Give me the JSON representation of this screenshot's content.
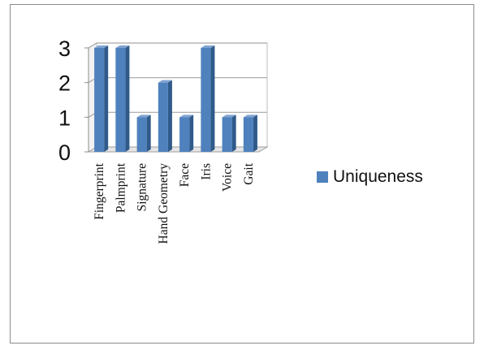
{
  "chart_data": {
    "type": "bar",
    "categories": [
      "Fingerprint",
      "Palmprint",
      "Signature",
      "Hand Geometry",
      "Face",
      "Iris",
      "Voice",
      "Gait"
    ],
    "series": [
      {
        "name": "Uniqueness",
        "values": [
          3,
          3,
          1,
          2,
          1,
          3,
          1,
          1
        ],
        "color": "#4f81bd"
      }
    ],
    "ylim": [
      0,
      3
    ],
    "yticks": [
      "0",
      "1",
      "2",
      "3"
    ],
    "grid": true,
    "legend": "right",
    "style": "3d-column"
  }
}
